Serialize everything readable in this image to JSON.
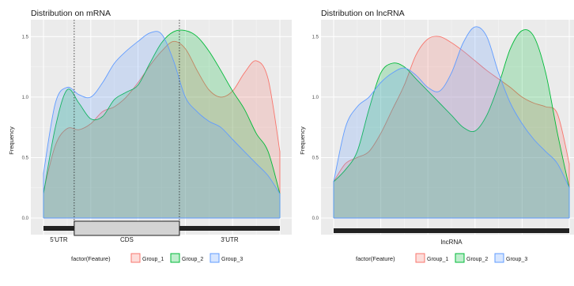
{
  "legend": {
    "title": "factor(Feature)",
    "items": [
      "Group_1",
      "Group_2",
      "Group_3"
    ]
  },
  "colors": {
    "Group_1": "#f8766d",
    "Group_2": "#00ba38",
    "Group_3": "#619cff",
    "panel_bg": "#ebebeb",
    "grid": "#ffffff"
  },
  "chart_data": [
    {
      "type": "area",
      "title": "Distribution on mRNA",
      "xlabel": "",
      "ylabel": "Frequency",
      "x": [
        0,
        0.05,
        0.1,
        0.15,
        0.2,
        0.25,
        0.3,
        0.35,
        0.4,
        0.45,
        0.5,
        0.55,
        0.6,
        0.65,
        0.7,
        0.75,
        0.8,
        0.85,
        0.9,
        0.95,
        1.0
      ],
      "ylim": [
        0,
        1.6
      ],
      "yticks": [
        0.0,
        0.5,
        1.0,
        1.5
      ],
      "regions": [
        "5'UTR",
        "CDS",
        "3'UTR"
      ],
      "region_bounds": [
        0,
        0.13,
        0.575,
        1.0
      ],
      "series": [
        {
          "name": "Group_1",
          "values": [
            0.22,
            0.6,
            0.74,
            0.73,
            0.78,
            0.88,
            0.92,
            1.0,
            1.12,
            1.26,
            1.38,
            1.46,
            1.4,
            1.22,
            1.06,
            1.0,
            1.05,
            1.2,
            1.3,
            1.15,
            0.55
          ]
        },
        {
          "name": "Group_2",
          "values": [
            0.2,
            0.75,
            1.06,
            0.95,
            0.82,
            0.84,
            0.98,
            1.04,
            1.1,
            1.28,
            1.45,
            1.54,
            1.55,
            1.5,
            1.38,
            1.22,
            1.05,
            0.9,
            0.7,
            0.55,
            0.2
          ]
        },
        {
          "name": "Group_3",
          "values": [
            0.37,
            0.95,
            1.08,
            1.02,
            1.0,
            1.12,
            1.28,
            1.38,
            1.46,
            1.53,
            1.52,
            1.3,
            1.0,
            0.88,
            0.8,
            0.75,
            0.65,
            0.55,
            0.45,
            0.35,
            0.2
          ]
        }
      ]
    },
    {
      "type": "area",
      "title": "Distribution on lncRNA",
      "xlabel": "",
      "ylabel": "Frequency",
      "x": [
        0,
        0.05,
        0.1,
        0.15,
        0.2,
        0.25,
        0.3,
        0.35,
        0.4,
        0.45,
        0.5,
        0.55,
        0.6,
        0.65,
        0.7,
        0.75,
        0.8,
        0.85,
        0.9,
        0.95,
        1.0
      ],
      "ylim": [
        0,
        1.6
      ],
      "yticks": [
        0.0,
        0.5,
        1.0,
        1.5
      ],
      "regions": [
        "lncRNA"
      ],
      "region_bounds": [
        0,
        1.0
      ],
      "series": [
        {
          "name": "Group_1",
          "values": [
            0.3,
            0.45,
            0.5,
            0.55,
            0.7,
            0.9,
            1.1,
            1.35,
            1.48,
            1.5,
            1.45,
            1.38,
            1.3,
            1.22,
            1.15,
            1.08,
            1.0,
            0.95,
            0.92,
            0.86,
            0.45
          ]
        },
        {
          "name": "Group_2",
          "values": [
            0.3,
            0.4,
            0.55,
            0.9,
            1.2,
            1.28,
            1.25,
            1.15,
            1.05,
            0.95,
            0.85,
            0.75,
            0.72,
            0.85,
            1.1,
            1.4,
            1.55,
            1.5,
            1.2,
            0.7,
            0.25
          ]
        },
        {
          "name": "Group_3",
          "values": [
            0.3,
            0.75,
            0.92,
            1.0,
            1.12,
            1.2,
            1.24,
            1.18,
            1.08,
            1.05,
            1.2,
            1.45,
            1.58,
            1.5,
            1.2,
            0.95,
            0.78,
            0.65,
            0.55,
            0.45,
            0.25
          ]
        }
      ]
    }
  ]
}
